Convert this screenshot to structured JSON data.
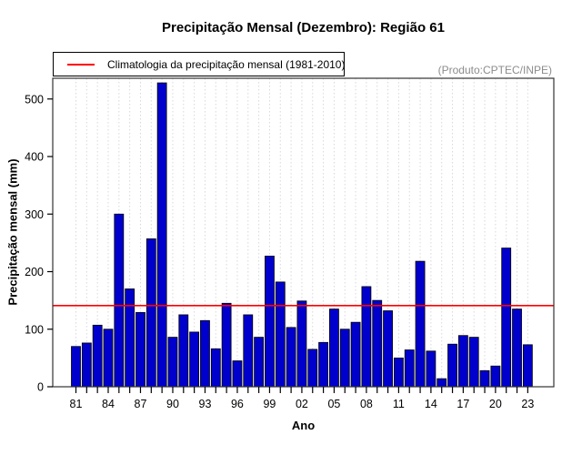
{
  "title": "Precipitação Mensal (Dezembro): Região 61",
  "watermark": "(Produto:CPTEC/INPE)",
  "legend": {
    "label": "Climatologia da precipitação mensal (1981-2010)",
    "line_color": "#FF0000"
  },
  "chart_data": {
    "type": "bar",
    "title": "Precipitação Mensal (Dezembro): Região 61",
    "xlabel": "Ano",
    "ylabel": "Precipitação mensal (mm)",
    "categories": [
      "1981",
      "1982",
      "1983",
      "1984",
      "1985",
      "1986",
      "1987",
      "1988",
      "1989",
      "1990",
      "1991",
      "1992",
      "1993",
      "1994",
      "1995",
      "1996",
      "1997",
      "1998",
      "1999",
      "2000",
      "2001",
      "2002",
      "2003",
      "2004",
      "2005",
      "2006",
      "2007",
      "2008",
      "2009",
      "2010",
      "2011",
      "2012",
      "2013",
      "2014",
      "2015",
      "2016",
      "2017",
      "2018",
      "2019",
      "2020",
      "2021",
      "2022",
      "2023"
    ],
    "values": [
      70,
      76,
      107,
      100,
      300,
      170,
      129,
      257,
      528,
      86,
      125,
      95,
      115,
      66,
      145,
      45,
      125,
      86,
      227,
      182,
      103,
      149,
      65,
      77,
      135,
      100,
      112,
      174,
      150,
      132,
      50,
      64,
      218,
      62,
      14,
      74,
      89,
      86,
      28,
      36,
      241,
      135,
      73
    ],
    "x_tick_labels": [
      "81",
      "84",
      "87",
      "90",
      "93",
      "96",
      "99",
      "02",
      "05",
      "08",
      "11",
      "14",
      "17",
      "20",
      "23"
    ],
    "x_tick_label_every": 3,
    "y_ticks": [
      0,
      100,
      200,
      300,
      400,
      500
    ],
    "ylim": [
      0,
      536
    ],
    "grid": "vertical-dashed",
    "grid_color": "#D8D8D8",
    "bar_color": "#0000CD",
    "bar_border_color": "#000000",
    "reference_line": {
      "value": 141,
      "color": "#FF0000"
    },
    "legend_position": "top-left"
  }
}
